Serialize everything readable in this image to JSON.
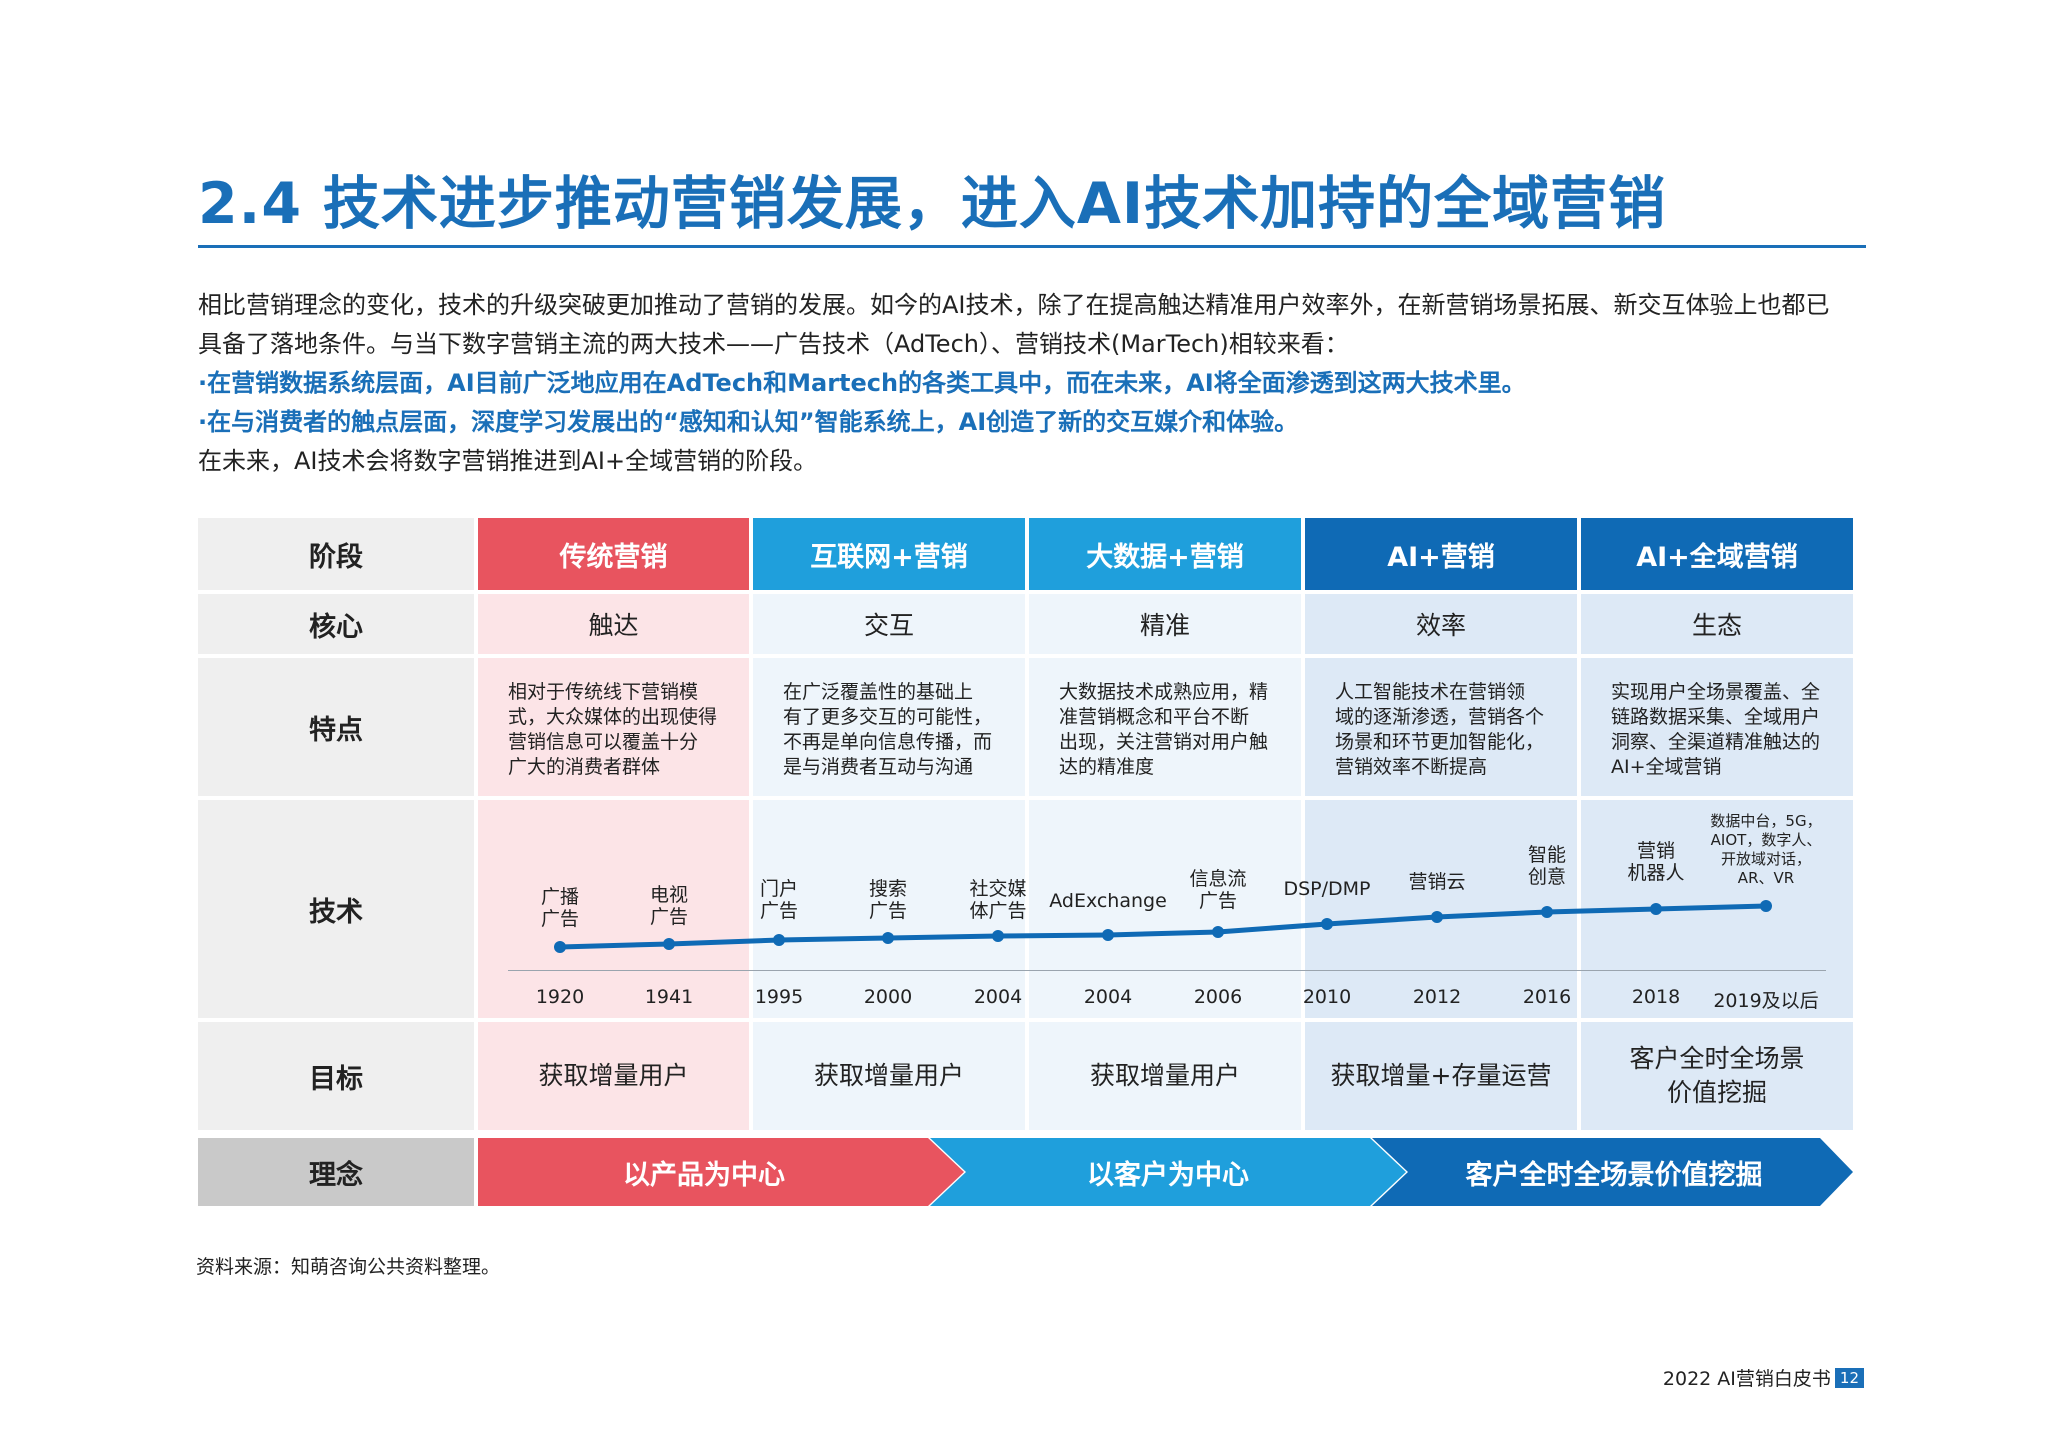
{
  "title": "2.4 技术进步推动营销发展，进入AI技术加持的全域营销",
  "intro": {
    "line1": "相比营销理念的变化，技术的升级突破更加推动了营销的发展。如今的AI技术，除了在提高触达精准用户效率外，在新营销场景拓展、新交互体验上也都已",
    "line2": "具备了落地条件。与当下数字营销主流的两大技术——广告技术（AdTech）、营销技术(MarTech)相较来看：",
    "bullet1": "·在营销数据系统层面，AI目前广泛地应用在AdTech和Martech的各类工具中，而在未来，AI将全面渗透到这两大技术里。",
    "bullet2": "·在与消费者的触点层面，深度学习发展出的“感知和认知”智能系统上，AI创造了新的交互媒介和体验。",
    "line3": "在未来，AI技术会将数字营销推进到AI+全域营销的阶段。"
  },
  "table": {
    "row_labels": {
      "stage": "阶段",
      "core": "核心",
      "features": "特点",
      "tech": "技术",
      "goal": "目标",
      "concept": "理念"
    },
    "stages": [
      {
        "name": "传统营销",
        "color": "#e8545f",
        "core": "触达",
        "features": [
          "相对于传统线下营销模",
          "式，大众媒体的出现使得",
          "营销信息可以覆盖十分",
          "广大的消费者群体"
        ]
      },
      {
        "name": "互联网+营销",
        "color": "#1f9fdc",
        "core": "交互",
        "features": [
          "在广泛覆盖性的基础上",
          "有了更多交互的可能性，",
          "不再是单向信息传播，而",
          "是与消费者互动与沟通"
        ]
      },
      {
        "name": "大数据+营销",
        "color": "#1f9fdc",
        "core": "精准",
        "features": [
          "大数据技术成熟应用，精",
          "准营销概念和平台不断",
          "出现，关注营销对用户触",
          "达的精准度"
        ]
      },
      {
        "name": "AI+营销",
        "color": "#0f6ab5",
        "core": "效率",
        "features": [
          "人工智能技术在营销领",
          "域的逐渐渗透，营销各个",
          "场景和环节更加智能化，",
          "营销效率不断提高"
        ]
      },
      {
        "name": "AI+全域营销",
        "color": "#0f6ab5",
        "core": "生态",
        "features": [
          "实现用户全场景覆盖、全",
          "链路数据采集、全域用户",
          "洞察、全渠道精准触达的",
          "AI+全域营销"
        ]
      }
    ],
    "goals": [
      "获取增量用户",
      "获取增量用户",
      "获取增量用户",
      "获取增量+存量运营",
      "客户全时全场景价值挖掘"
    ],
    "goal5_lines": [
      "客户全时全场景",
      "价值挖掘"
    ]
  },
  "timeline": {
    "points": [
      {
        "year": "1920",
        "label": [
          "广播",
          "广告"
        ]
      },
      {
        "year": "1941",
        "label": [
          "电视",
          "广告"
        ]
      },
      {
        "year": "1995",
        "label": [
          "门户",
          "广告"
        ]
      },
      {
        "year": "2000",
        "label": [
          "搜索",
          "广告"
        ]
      },
      {
        "year": "2004",
        "label": [
          "社交媒",
          "体广告"
        ]
      },
      {
        "year": "2004",
        "label": [
          "AdExchange"
        ]
      },
      {
        "year": "2006",
        "label": [
          "信息流",
          "广告"
        ]
      },
      {
        "year": "2010",
        "label": [
          "DSP/DMP"
        ]
      },
      {
        "year": "2012",
        "label": [
          "营销云"
        ]
      },
      {
        "year": "2016",
        "label": [
          "智能",
          "创意"
        ]
      },
      {
        "year": "2018",
        "label": [
          "营销",
          "机器人"
        ]
      },
      {
        "year": "2019及以后",
        "label": [
          "数据中台，5G，",
          "AIOT，数字人、",
          "开放域对话，",
          "AR、VR"
        ]
      }
    ],
    "line_color": "#0f6ab5"
  },
  "concepts": [
    {
      "text": "以产品为中心",
      "color": "#e8545f"
    },
    {
      "text": "以客户为中心",
      "color": "#1f9fdc"
    },
    {
      "text": "客户全时全场景价值挖掘",
      "color": "#0f6ab5"
    }
  ],
  "source": "资料来源：知萌咨询公共资料整理。",
  "footer": {
    "book": "2022 AI营销白皮书",
    "page": "12"
  }
}
